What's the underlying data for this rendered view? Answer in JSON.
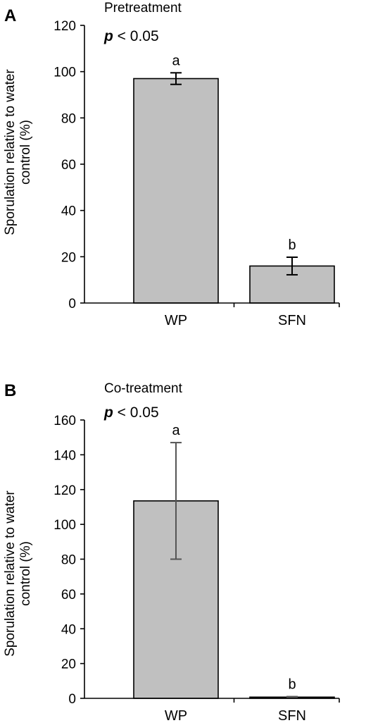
{
  "chart_data": [
    {
      "type": "bar",
      "panel": "A",
      "title": "Pretreatment",
      "annotation_prefix": "p",
      "annotation_suffix": " < 0.05",
      "ylabel_line1": "Sporulation relative to water",
      "ylabel_line2": "control (%)",
      "categories": [
        "WP",
        "SFN"
      ],
      "values": [
        97,
        16
      ],
      "errors": [
        2.5,
        3.8
      ],
      "labels": [
        "a",
        "b"
      ],
      "ylim": [
        0,
        120
      ],
      "yticks": [
        0,
        20,
        40,
        60,
        80,
        100,
        120
      ],
      "bar_color": "#c0c0c0",
      "error_color": "#000000",
      "grid": false,
      "legend": "none"
    },
    {
      "type": "bar",
      "panel": "B",
      "title": "Co-treatment",
      "annotation_prefix": "p",
      "annotation_suffix": " < 0.05",
      "ylabel_line1": "Sporulation relative to water",
      "ylabel_line2": "control (%)",
      "categories": [
        "WP",
        "SFN"
      ],
      "values": [
        113.5,
        0.7
      ],
      "errors": [
        33.5,
        0.3
      ],
      "labels": [
        "a",
        "b"
      ],
      "ylim": [
        0,
        160
      ],
      "yticks": [
        0,
        20,
        40,
        60,
        80,
        100,
        120,
        140,
        160
      ],
      "bar_color": "#c0c0c0",
      "error_color": "#555555",
      "grid": false,
      "legend": "none"
    }
  ]
}
